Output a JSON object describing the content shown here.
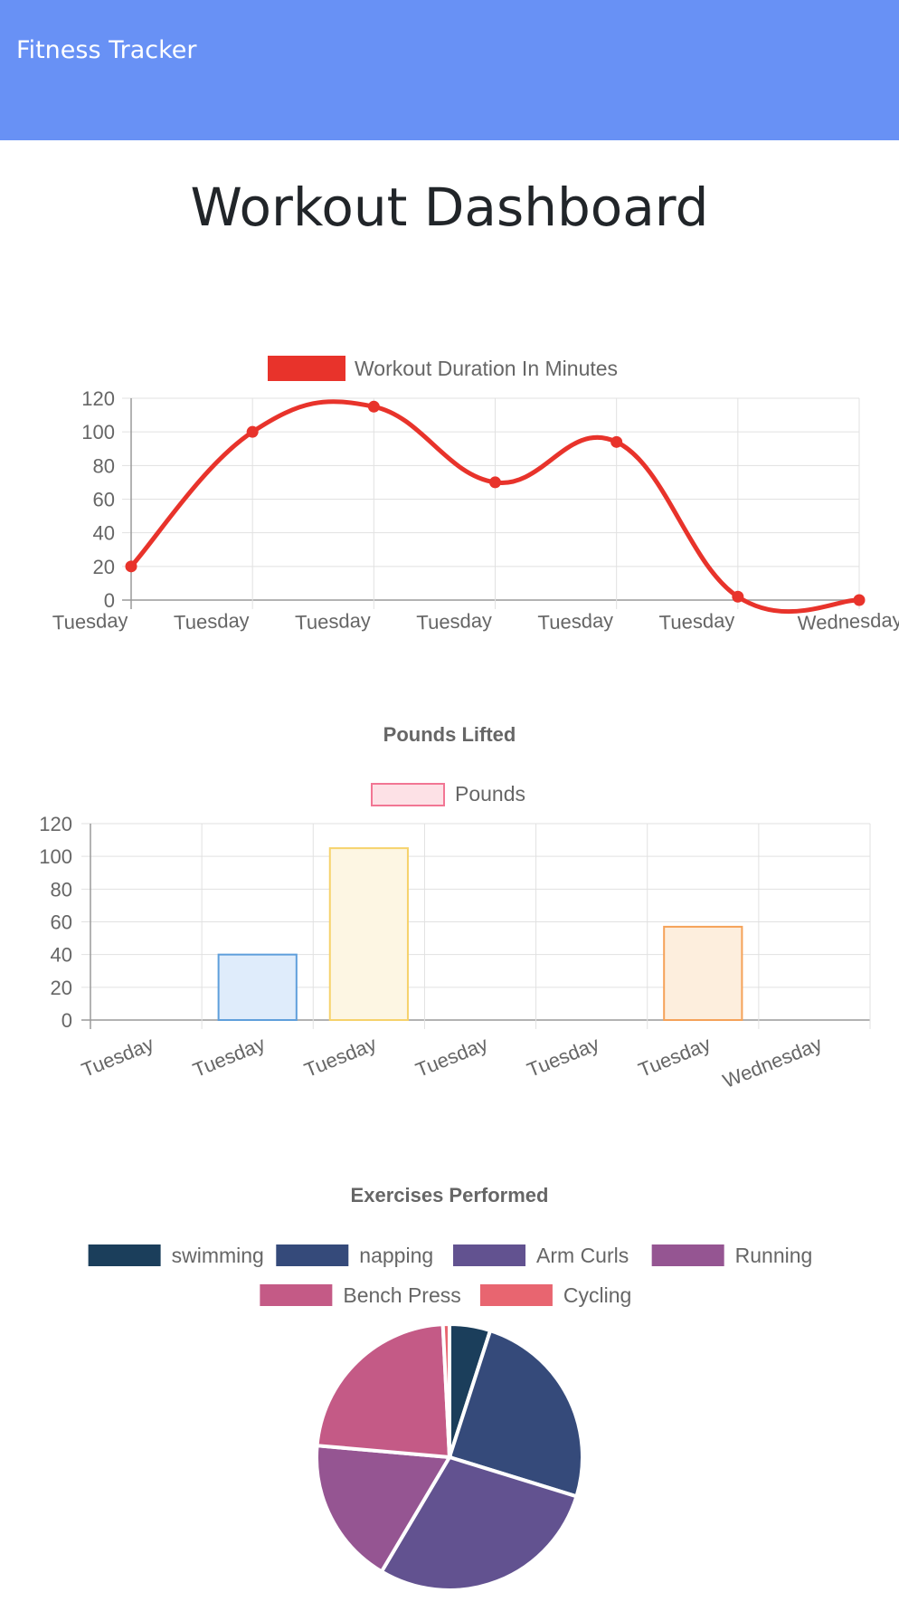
{
  "navbar": {
    "brand": "Fitness Tracker"
  },
  "header": {
    "title": "Workout Dashboard"
  },
  "chart_data": [
    {
      "type": "line",
      "title": "",
      "legend": [
        "Workout Duration In Minutes"
      ],
      "legend_position": "top",
      "categories": [
        "Tuesday",
        "Tuesday",
        "Tuesday",
        "Tuesday",
        "Tuesday",
        "Tuesday",
        "Wednesday"
      ],
      "series": [
        {
          "name": "Workout Duration In Minutes",
          "values": [
            20,
            100,
            115,
            70,
            94,
            2,
            0
          ]
        }
      ],
      "yticks": [
        0,
        20,
        40,
        60,
        80,
        100,
        120
      ],
      "ylim": [
        0,
        120
      ],
      "grid": true,
      "color": "#e8332b"
    },
    {
      "type": "bar",
      "title": "Pounds Lifted",
      "legend": [
        "Pounds"
      ],
      "legend_position": "top",
      "categories": [
        "Tuesday",
        "Tuesday",
        "Tuesday",
        "Tuesday",
        "Tuesday",
        "Tuesday",
        "Wednesday"
      ],
      "series": [
        {
          "name": "Pounds",
          "values": [
            0,
            40,
            105,
            0,
            0,
            57,
            0
          ]
        }
      ],
      "yticks": [
        0,
        20,
        40,
        60,
        80,
        100,
        120
      ],
      "ylim": [
        0,
        120
      ],
      "grid": true,
      "bar_fill": [
        "#fde1e6",
        "#dfecfb",
        "#fdf6e3",
        "#e6f6f6",
        "#ece6fb",
        "#fdeedd",
        "#f0f0f0"
      ],
      "bar_stroke": [
        "#f27694",
        "#5f9fdb",
        "#f6d26b",
        "#5fc6c6",
        "#9c7ae8",
        "#f5a259",
        "#c9cbcf"
      ],
      "legend_fill": "#fde1e6",
      "legend_stroke": "#f27694"
    },
    {
      "type": "pie",
      "title": "Exercises Performed",
      "legend_position": "top",
      "labels": [
        "swimming",
        "napping",
        "Arm Curls",
        "Running",
        "Bench Press",
        "Cycling"
      ],
      "values": [
        5,
        25,
        29,
        18,
        23,
        0.8
      ],
      "colors": [
        "#1b3e5b",
        "#354a7a",
        "#625290",
        "#955592",
        "#c45a86",
        "#e86570"
      ]
    }
  ]
}
